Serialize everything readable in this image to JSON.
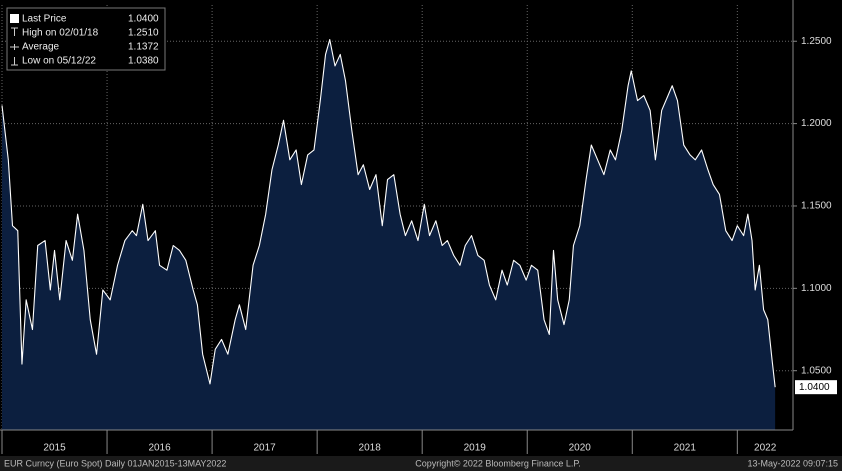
{
  "chart_data": {
    "type": "area",
    "line_color": "#ffffff",
    "fill_color": "#0c1f3f",
    "grid": true,
    "legend": [
      {
        "label": "Last Price",
        "value": 1.04,
        "value_label": "1.0400"
      },
      {
        "label": "High on 02/01/18",
        "value": 1.251,
        "value_label": "1.2510"
      },
      {
        "label": "Average",
        "value": 1.1372,
        "value_label": "1.1372"
      },
      {
        "label": "Low on 05/12/22",
        "value": 1.038,
        "value_label": "1.0380"
      }
    ],
    "footer_left": "EUR Curncy (Euro Spot)  Daily 01JAN2015-13MAY2022",
    "footer_center": "Copyright© 2022 Bloomberg Finance L.P.",
    "footer_right": "13-May-2022 09:07:15",
    "xlim": [
      2015,
      2022.53
    ],
    "ylim": [
      1.014,
      1.272
    ],
    "xticks": [
      {
        "value": 2015,
        "label": "2015"
      },
      {
        "value": 2016,
        "label": "2016"
      },
      {
        "value": 2017,
        "label": "2017"
      },
      {
        "value": 2018,
        "label": "2018"
      },
      {
        "value": 2019,
        "label": "2019"
      },
      {
        "value": 2020,
        "label": "2020"
      },
      {
        "value": 2021,
        "label": "2021"
      },
      {
        "value": 2022,
        "label": "2022"
      }
    ],
    "yticks": [
      {
        "value": 1.05,
        "label": "1.0500"
      },
      {
        "value": 1.1,
        "label": "1.1000"
      },
      {
        "value": 1.15,
        "label": "1.1500"
      },
      {
        "value": 1.2,
        "label": "1.2000"
      },
      {
        "value": 1.25,
        "label": "1.2500"
      }
    ],
    "x": [
      2015.0,
      2015.06,
      2015.1,
      2015.15,
      2015.19,
      2015.23,
      2015.29,
      2015.34,
      2015.41,
      2015.46,
      2015.5,
      2015.55,
      2015.61,
      2015.67,
      2015.72,
      2015.78,
      2015.84,
      2015.9,
      2015.96,
      2016.03,
      2016.1,
      2016.17,
      2016.24,
      2016.28,
      2016.34,
      2016.39,
      2016.46,
      2016.5,
      2016.57,
      2016.63,
      2016.69,
      2016.75,
      2016.82,
      2016.86,
      2016.91,
      2016.98,
      2017.03,
      2017.09,
      2017.15,
      2017.22,
      2017.26,
      2017.32,
      2017.39,
      2017.45,
      2017.51,
      2017.57,
      2017.63,
      2017.68,
      2017.74,
      2017.8,
      2017.85,
      2017.91,
      2017.97,
      2018.03,
      2018.08,
      2018.12,
      2018.17,
      2018.22,
      2018.27,
      2018.33,
      2018.39,
      2018.44,
      2018.5,
      2018.56,
      2018.62,
      2018.67,
      2018.73,
      2018.79,
      2018.84,
      2018.9,
      2018.96,
      2019.02,
      2019.07,
      2019.13,
      2019.19,
      2019.24,
      2019.3,
      2019.36,
      2019.41,
      2019.47,
      2019.53,
      2019.59,
      2019.64,
      2019.7,
      2019.76,
      2019.81,
      2019.87,
      2019.93,
      2019.99,
      2020.04,
      2020.1,
      2020.16,
      2020.21,
      2020.25,
      2020.29,
      2020.35,
      2020.4,
      2020.44,
      2020.5,
      2020.56,
      2020.61,
      2020.67,
      2020.73,
      2020.79,
      2020.84,
      2020.9,
      2020.96,
      2020.99,
      2021.05,
      2021.11,
      2021.17,
      2021.22,
      2021.28,
      2021.34,
      2021.38,
      2021.43,
      2021.49,
      2021.55,
      2021.6,
      2021.66,
      2021.72,
      2021.77,
      2021.83,
      2021.89,
      2021.95,
      2022.0,
      2022.06,
      2022.1,
      2022.14,
      2022.17,
      2022.21,
      2022.25,
      2022.29,
      2022.33,
      2022.36
    ],
    "values": [
      1.211,
      1.178,
      1.138,
      1.135,
      1.054,
      1.093,
      1.075,
      1.126,
      1.129,
      1.099,
      1.123,
      1.093,
      1.129,
      1.117,
      1.145,
      1.123,
      1.081,
      1.06,
      1.099,
      1.093,
      1.114,
      1.129,
      1.135,
      1.132,
      1.151,
      1.129,
      1.135,
      1.114,
      1.111,
      1.126,
      1.123,
      1.117,
      1.099,
      1.09,
      1.06,
      1.042,
      1.063,
      1.069,
      1.06,
      1.081,
      1.09,
      1.075,
      1.114,
      1.126,
      1.145,
      1.172,
      1.187,
      1.202,
      1.178,
      1.184,
      1.163,
      1.181,
      1.184,
      1.214,
      1.242,
      1.251,
      1.235,
      1.242,
      1.226,
      1.196,
      1.169,
      1.175,
      1.16,
      1.169,
      1.138,
      1.166,
      1.169,
      1.145,
      1.132,
      1.141,
      1.129,
      1.151,
      1.132,
      1.141,
      1.126,
      1.129,
      1.12,
      1.114,
      1.126,
      1.132,
      1.12,
      1.117,
      1.102,
      1.093,
      1.111,
      1.102,
      1.117,
      1.114,
      1.105,
      1.114,
      1.111,
      1.081,
      1.072,
      1.123,
      1.093,
      1.078,
      1.093,
      1.126,
      1.138,
      1.166,
      1.187,
      1.178,
      1.169,
      1.184,
      1.178,
      1.196,
      1.223,
      1.232,
      1.214,
      1.217,
      1.208,
      1.178,
      1.208,
      1.217,
      1.223,
      1.214,
      1.187,
      1.181,
      1.178,
      1.184,
      1.172,
      1.163,
      1.157,
      1.135,
      1.129,
      1.138,
      1.132,
      1.145,
      1.129,
      1.099,
      1.114,
      1.087,
      1.081,
      1.057,
      1.04
    ]
  }
}
